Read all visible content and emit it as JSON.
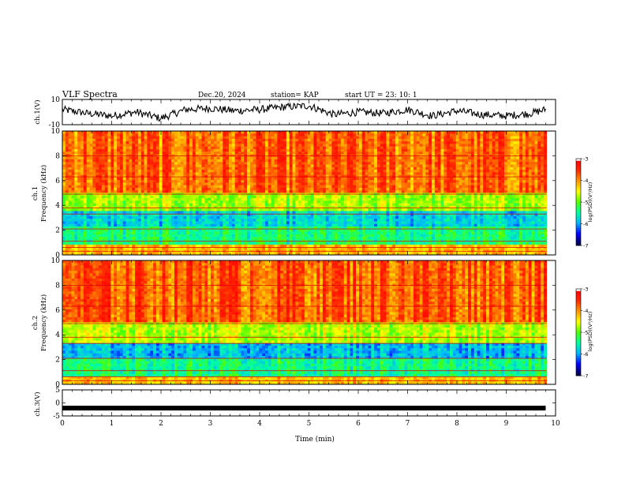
{
  "header": {
    "title": "VLF Spectra",
    "date": "Dec.20, 2024",
    "station": "station= KAP",
    "start": "start  UT  =   23: 10: 1"
  },
  "colorbar": {
    "label": "log(PSD)(V²/Hz)",
    "ticks": [
      "-3",
      "-4",
      "-5",
      "-6",
      "-7"
    ],
    "colors": [
      "#000040",
      "#0000ff",
      "#00c8ff",
      "#00ff80",
      "#40ff00",
      "#ffff00",
      "#ff8000",
      "#ff0000",
      "#ffffff"
    ]
  },
  "chart_data": [
    {
      "type": "line",
      "panel": "ch1-waveform",
      "ylabel": "ch.1(V)",
      "ylim": [
        -10,
        10
      ],
      "y_ticks": [
        "10",
        "-10"
      ],
      "x": [
        0.0,
        0.5,
        1.0,
        1.5,
        2.0,
        2.5,
        3.0,
        3.5,
        4.0,
        4.5,
        5.0,
        5.5,
        6.0,
        6.5,
        7.0,
        7.5,
        8.0,
        8.5,
        9.0,
        9.5,
        9.8
      ],
      "values": [
        2,
        -1,
        -3,
        0,
        -5,
        2,
        3,
        1,
        2,
        4,
        5,
        -2,
        0,
        -1,
        2,
        -3,
        1,
        -2,
        -3,
        -1,
        2
      ]
    },
    {
      "type": "heatmap",
      "panel": "ch1-spectrogram",
      "ylabel": "ch.1",
      "ylabel2": "Frequency  (kHz)",
      "xlim": [
        0,
        10
      ],
      "ylim": [
        0,
        10
      ],
      "y_ticks": [
        "10",
        "8",
        "6",
        "4",
        "2",
        "0"
      ],
      "bands": [
        {
          "range": [
            0,
            0.8
          ],
          "level": -4.2
        },
        {
          "range": [
            0.8,
            2.2
          ],
          "level": -5.4
        },
        {
          "range": [
            2.2,
            3.5
          ],
          "level": -5.8
        },
        {
          "range": [
            3.5,
            5.0
          ],
          "level": -4.8
        },
        {
          "range": [
            5.0,
            10
          ],
          "level": -3.8
        }
      ]
    },
    {
      "type": "heatmap",
      "panel": "ch2-spectrogram",
      "ylabel": "ch.2",
      "ylabel2": "Frequency  (kHz)",
      "xlim": [
        0,
        10
      ],
      "ylim": [
        0,
        10
      ],
      "y_ticks": [
        "10",
        "8",
        "6",
        "4",
        "2",
        "0"
      ],
      "bands": [
        {
          "range": [
            0,
            0.7
          ],
          "level": -4.2
        },
        {
          "range": [
            0.7,
            2.0
          ],
          "level": -5.4
        },
        {
          "range": [
            2.0,
            3.4
          ],
          "level": -5.9
        },
        {
          "range": [
            3.4,
            5.0
          ],
          "level": -4.7
        },
        {
          "range": [
            5.0,
            10
          ],
          "level": -3.7
        }
      ]
    },
    {
      "type": "line",
      "panel": "ch3-waveform",
      "ylabel": "ch.3(V)",
      "ylim": [
        -5,
        5
      ],
      "y_ticks": [
        "5",
        "0",
        "-5"
      ],
      "x": [
        0,
        9.8
      ],
      "values": [
        -2,
        -2
      ]
    }
  ],
  "xaxis": {
    "label": "Time  (min)",
    "ticks": [
      "0",
      "1",
      "2",
      "3",
      "4",
      "5",
      "6",
      "7",
      "8",
      "9",
      "10"
    ],
    "xlim": [
      0,
      10
    ]
  }
}
